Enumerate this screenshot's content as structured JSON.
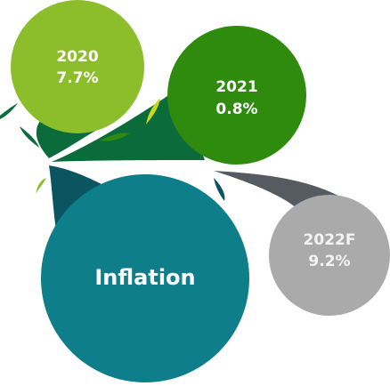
{
  "nodes": [
    {
      "label": "2020",
      "value": "7.7%"
    },
    {
      "label": "2021",
      "value": "0.8%"
    },
    {
      "label": "2022F",
      "value": "9.2%"
    }
  ],
  "center": {
    "label": "Inflation"
  }
}
